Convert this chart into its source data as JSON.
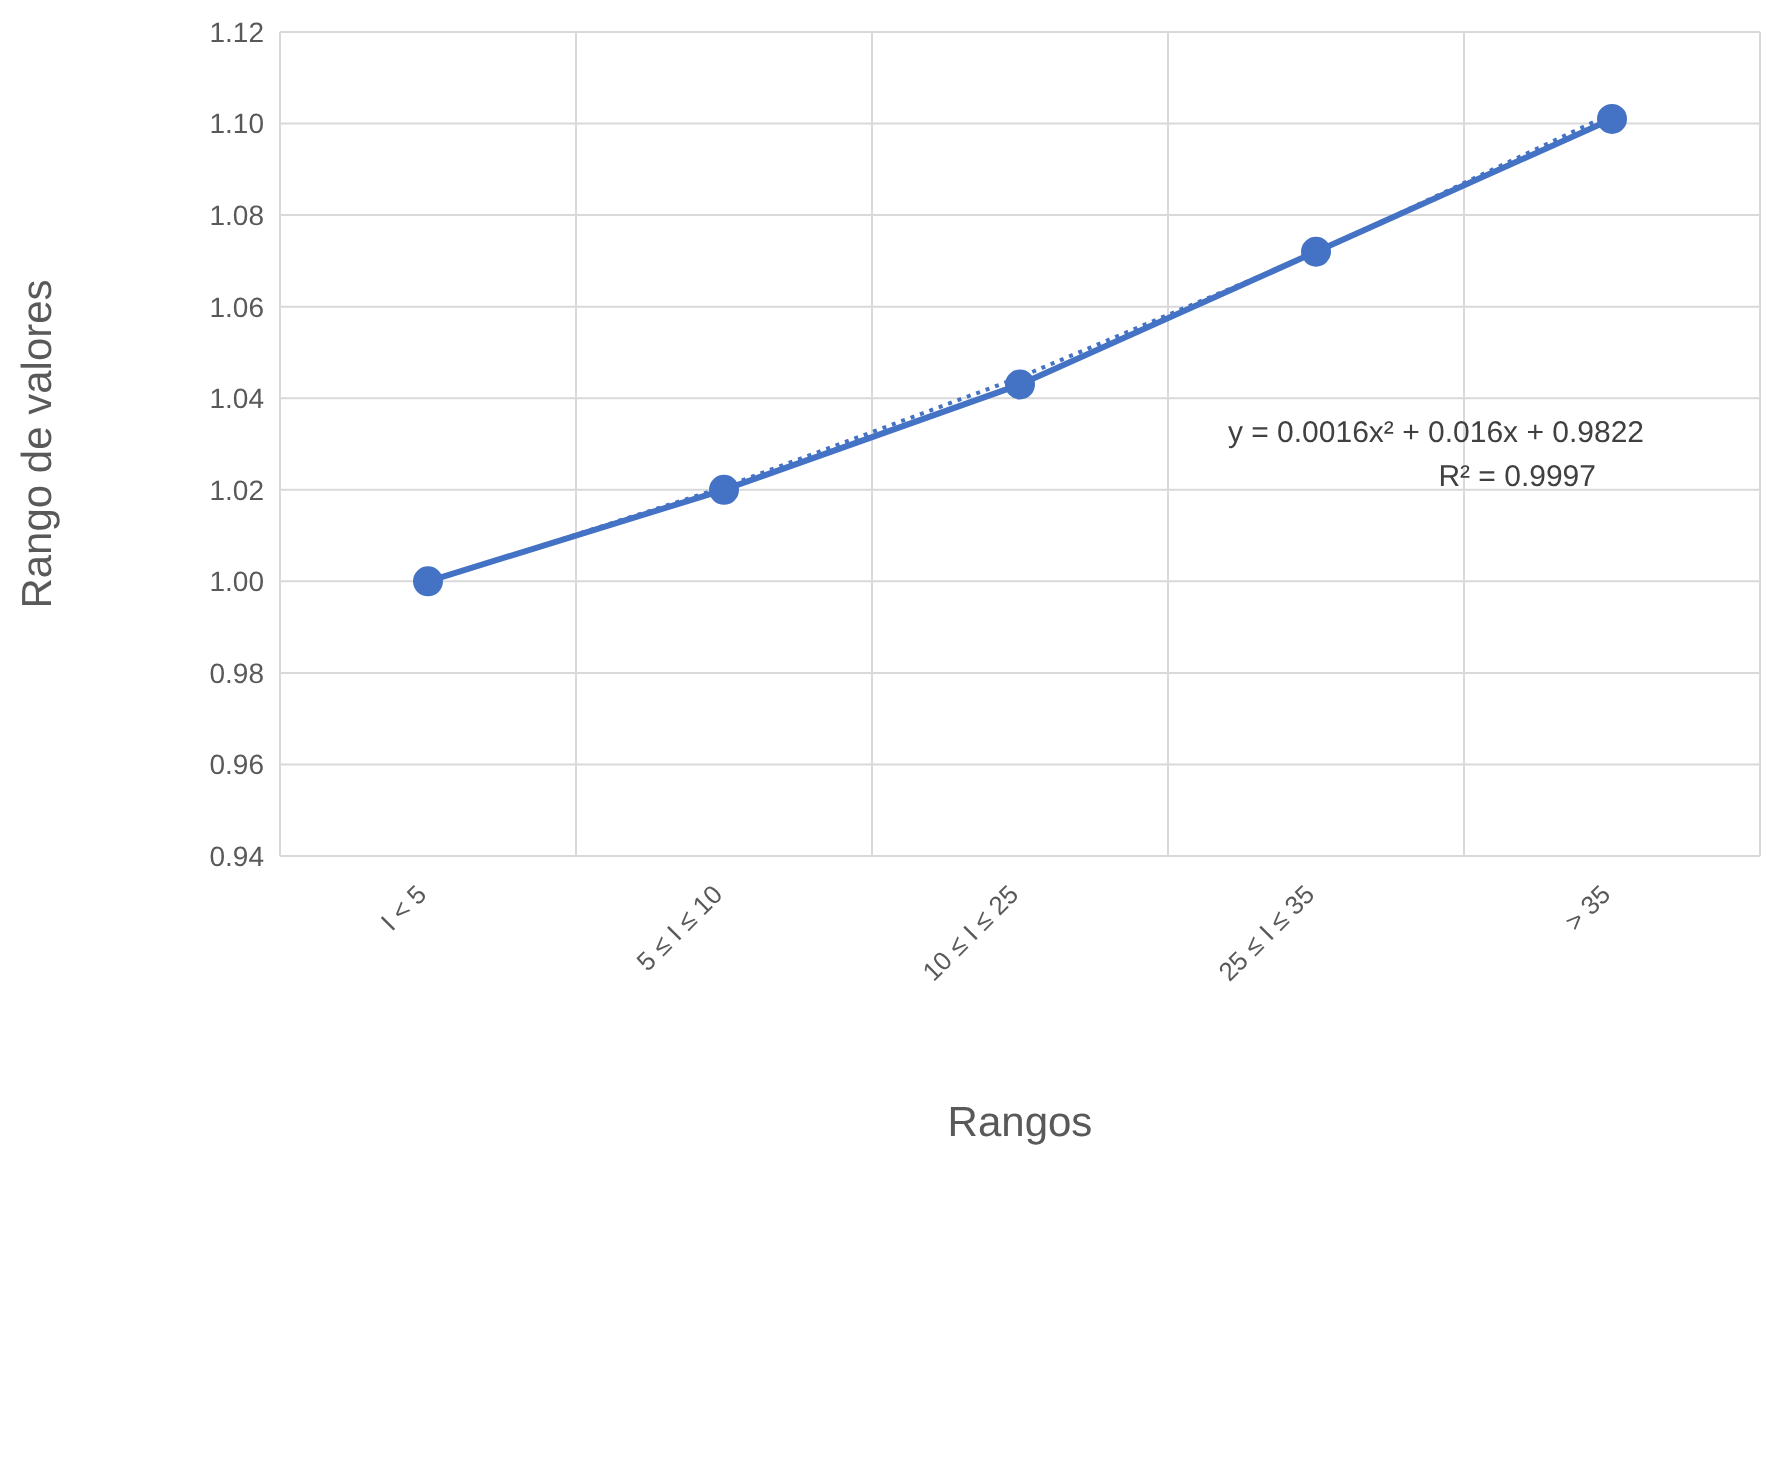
{
  "chart_data": {
    "type": "line",
    "xlabel": "Rangos",
    "ylabel": "Rango de valores",
    "categories": [
      "I < 5",
      "5 ≤ I ≤ 10",
      "10 ≤ I ≤ 25",
      "25 ≤ I ≤ 35",
      "> 35"
    ],
    "series": [
      {
        "color": "#4472c4",
        "values": [
          1.0,
          1.02,
          1.043,
          1.072,
          1.101
        ],
        "marker": "circle",
        "line_style": "solid"
      },
      {
        "color": "#4472c4",
        "values": [
          0.9998,
          1.0206,
          1.0446,
          1.0718,
          1.1022
        ],
        "marker": "none",
        "line_style": "dotted"
      }
    ],
    "ylim": [
      0.94,
      1.12
    ],
    "yticks": [
      {
        "value": 0.94,
        "label": "0.94"
      },
      {
        "value": 0.96,
        "label": "0.96"
      },
      {
        "value": 0.98,
        "label": "0.98"
      },
      {
        "value": 1.0,
        "label": "1.00"
      },
      {
        "value": 1.02,
        "label": "1.02"
      },
      {
        "value": 1.04,
        "label": "1.04"
      },
      {
        "value": 1.06,
        "label": "1.06"
      },
      {
        "value": 1.08,
        "label": "1.08"
      },
      {
        "value": 1.1,
        "label": "1.10"
      },
      {
        "value": 1.12,
        "label": "1.12"
      }
    ],
    "grid": true,
    "annotations": [
      "y = 0.0016x² + 0.016x + 0.9822",
      "R² = 0.9997"
    ]
  }
}
